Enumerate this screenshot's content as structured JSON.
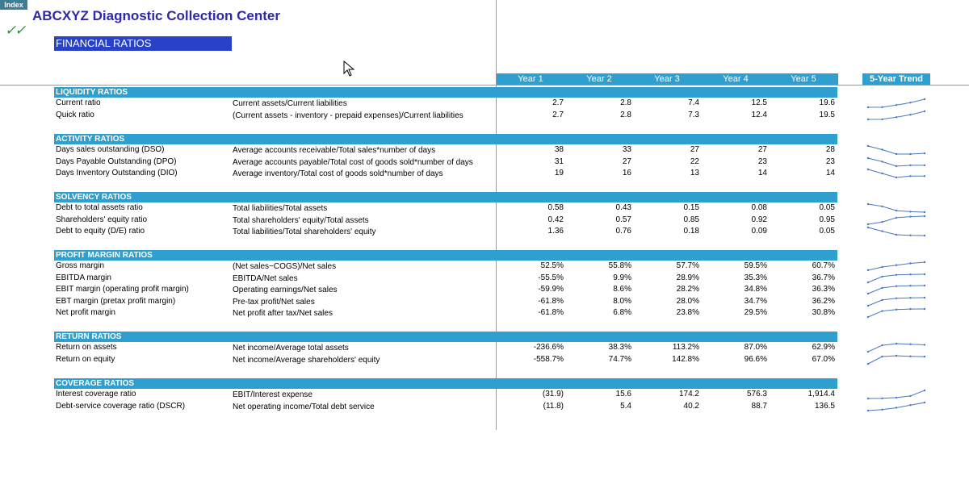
{
  "header": {
    "index_label": "Index",
    "title": "ABCXYZ Diagnostic Collection Center",
    "checkmarks": "✓✓",
    "banner": "FINANCIAL RATIOS"
  },
  "columns": {
    "years": [
      "Year 1",
      "Year 2",
      "Year 3",
      "Year 4",
      "Year 5"
    ],
    "trend": "5-Year Trend"
  },
  "colors": {
    "accent": "#2e9fcf",
    "banner": "#2741c7",
    "title": "#2e2aa6",
    "spark": "#4a78c2",
    "check": "#2e8a3e"
  },
  "sections": [
    {
      "title": "LIQUIDITY RATIOS",
      "rows": [
        {
          "label": "Current ratio",
          "formula": "Current assets/Current liabilities",
          "values": [
            "2.7",
            "2.8",
            "7.4",
            "12.5",
            "19.6"
          ],
          "trend": [
            2.7,
            2.8,
            7.4,
            12.5,
            19.6
          ]
        },
        {
          "label": "Quick ratio",
          "formula": "(Current assets - inventory - prepaid expenses)/Current liabilities",
          "values": [
            "2.7",
            "2.8",
            "7.3",
            "12.4",
            "19.5"
          ],
          "trend": [
            2.7,
            2.8,
            7.3,
            12.4,
            19.5
          ]
        }
      ]
    },
    {
      "title": "ACTIVITY RATIOS",
      "rows": [
        {
          "label": "Days sales outstanding (DSO)",
          "formula": "Average accounts receivable/Total sales*number of days",
          "values": [
            "38",
            "33",
            "27",
            "27",
            "28"
          ],
          "trend": [
            38,
            33,
            27,
            27,
            28
          ]
        },
        {
          "label": "Days Payable Outstanding (DPO)",
          "formula": "Average accounts payable/Total cost of goods sold*number of days",
          "values": [
            "31",
            "27",
            "22",
            "23",
            "23"
          ],
          "trend": [
            31,
            27,
            22,
            23,
            23
          ]
        },
        {
          "label": "Days Inventory Outstanding (DIO)",
          "formula": "Average inventory/Total cost of goods sold*number of days",
          "values": [
            "19",
            "16",
            "13",
            "14",
            "14"
          ],
          "trend": [
            19,
            16,
            13,
            14,
            14
          ]
        }
      ]
    },
    {
      "title": "SOLVENCY RATIOS",
      "rows": [
        {
          "label": "Debt to total assets ratio",
          "formula": "Total liabilities/Total assets",
          "values": [
            "0.58",
            "0.43",
            "0.15",
            "0.08",
            "0.05"
          ],
          "trend": [
            0.58,
            0.43,
            0.15,
            0.08,
            0.05
          ]
        },
        {
          "label": "Shareholders' equity ratio",
          "formula": "Total shareholders' equity/Total assets",
          "values": [
            "0.42",
            "0.57",
            "0.85",
            "0.92",
            "0.95"
          ],
          "trend": [
            0.42,
            0.57,
            0.85,
            0.92,
            0.95
          ]
        },
        {
          "label": "Debt to equity (D/E) ratio",
          "formula": "Total liabilities/Total shareholders' equity",
          "values": [
            "1.36",
            "0.76",
            "0.18",
            "0.09",
            "0.05"
          ],
          "trend": [
            1.36,
            0.76,
            0.18,
            0.09,
            0.05
          ]
        }
      ]
    },
    {
      "title": "PROFIT MARGIN RATIOS",
      "rows": [
        {
          "label": "Gross margin",
          "formula": "(Net sales−COGS)/Net sales",
          "values": [
            "52.5%",
            "55.8%",
            "57.7%",
            "59.5%",
            "60.7%"
          ],
          "trend": [
            52.5,
            55.8,
            57.7,
            59.5,
            60.7
          ]
        },
        {
          "label": "EBITDA margin",
          "formula": "EBITDA/Net sales",
          "values": [
            "-55.5%",
            "9.9%",
            "28.9%",
            "35.3%",
            "36.7%"
          ],
          "trend": [
            -55.5,
            9.9,
            28.9,
            35.3,
            36.7
          ]
        },
        {
          "label": "EBIT margin (operating profit margin)",
          "formula": "Operating earnings/Net sales",
          "values": [
            "-59.9%",
            "8.6%",
            "28.2%",
            "34.8%",
            "36.3%"
          ],
          "trend": [
            -59.9,
            8.6,
            28.2,
            34.8,
            36.3
          ]
        },
        {
          "label": "EBT margin (pretax profit margin)",
          "formula": "Pre-tax profit/Net sales",
          "values": [
            "-61.8%",
            "8.0%",
            "28.0%",
            "34.7%",
            "36.2%"
          ],
          "trend": [
            -61.8,
            8.0,
            28.0,
            34.7,
            36.2
          ]
        },
        {
          "label": "Net profit margin",
          "formula": "Net profit after tax/Net sales",
          "values": [
            "-61.8%",
            "6.8%",
            "23.8%",
            "29.5%",
            "30.8%"
          ],
          "trend": [
            -61.8,
            6.8,
            23.8,
            29.5,
            30.8
          ]
        }
      ]
    },
    {
      "title": "RETURN RATIOS",
      "rows": [
        {
          "label": "Return on assets",
          "formula": "Net income/Average total assets",
          "values": [
            "-236.6%",
            "38.3%",
            "113.2%",
            "87.0%",
            "62.9%"
          ],
          "trend": [
            -236.6,
            38.3,
            113.2,
            87.0,
            62.9
          ]
        },
        {
          "label": "Return on equity",
          "formula": "Net income/Average shareholders' equity",
          "values": [
            "-558.7%",
            "74.7%",
            "142.8%",
            "96.6%",
            "67.0%"
          ],
          "trend": [
            -558.7,
            74.7,
            142.8,
            96.6,
            67.0
          ]
        }
      ]
    },
    {
      "title": "COVERAGE RATIOS",
      "rows": [
        {
          "label": "Interest coverage ratio",
          "formula": "EBIT/Interest expense",
          "values": [
            "(31.9)",
            "15.6",
            "174.2",
            "576.3",
            "1,914.4"
          ],
          "trend": [
            -31.9,
            15.6,
            174.2,
            576.3,
            1914.4
          ]
        },
        {
          "label": "Debt-service coverage ratio (DSCR)",
          "formula": "Net operating income/Total debt service",
          "values": [
            "(11.8)",
            "5.4",
            "40.2",
            "88.7",
            "136.5"
          ],
          "trend": [
            -11.8,
            5.4,
            40.2,
            88.7,
            136.5
          ]
        }
      ]
    }
  ]
}
